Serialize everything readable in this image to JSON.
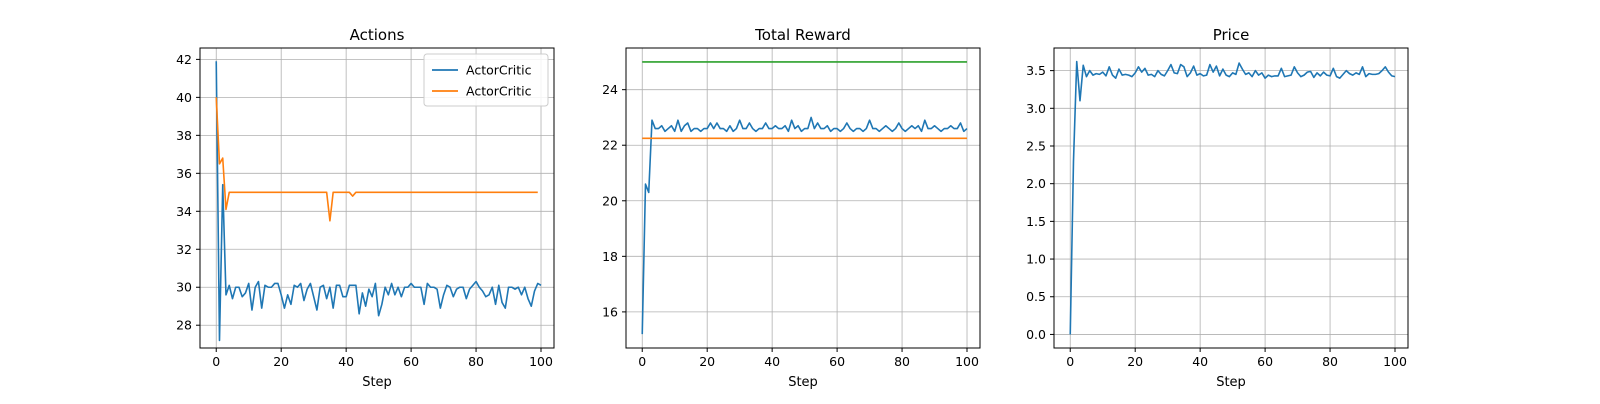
{
  "colors": {
    "c0": "#1f77b4",
    "c1": "#ff7f0e",
    "c2": "#2ca02c",
    "grid": "#b0b0b0"
  },
  "chart_data": [
    {
      "type": "line",
      "title": "Actions",
      "xlabel": "Step",
      "ylabel": "",
      "grid": true,
      "xlim": [
        -5,
        104
      ],
      "ylim": [
        26.8,
        42.6
      ],
      "xticks": [
        0,
        20,
        40,
        60,
        80,
        100
      ],
      "yticks": [
        28,
        30,
        32,
        34,
        36,
        38,
        40,
        42
      ],
      "ytick_labels": [
        "28",
        "30",
        "32",
        "34",
        "36",
        "38",
        "40",
        "42"
      ],
      "legend": {
        "position": "top-right",
        "entries": [
          "ActorCritic",
          "ActorCritic"
        ]
      },
      "series": [
        {
          "name": "ActorCritic",
          "color": "#1f77b4",
          "values": [
            41.9,
            27.2,
            35.4,
            29.6,
            30.1,
            29.4,
            30.0,
            30.0,
            29.5,
            29.7,
            30.2,
            28.8,
            30.0,
            30.3,
            28.9,
            30.1,
            30.0,
            30.0,
            30.2,
            30.2,
            29.6,
            28.9,
            29.6,
            29.1,
            30.1,
            30.0,
            30.2,
            29.3,
            29.9,
            30.2,
            29.5,
            28.8,
            30.0,
            30.1,
            29.4,
            30.0,
            28.9,
            30.1,
            30.1,
            29.5,
            29.5,
            30.1,
            30.1,
            30.1,
            28.6,
            29.7,
            29.0,
            29.9,
            29.5,
            30.2,
            28.5,
            29.1,
            30.0,
            29.6,
            30.2,
            29.6,
            30.0,
            29.5,
            30.0,
            30.0,
            30.2,
            30.0,
            30.0,
            30.0,
            29.1,
            30.2,
            30.0,
            30.0,
            29.9,
            28.9,
            29.6,
            30.1,
            30.0,
            29.5,
            29.9,
            30.0,
            30.0,
            29.4,
            29.9,
            30.1,
            30.3,
            30.0,
            29.8,
            29.5,
            29.6,
            30.0,
            29.1,
            30.1,
            29.2,
            28.9,
            30.0,
            30.0,
            29.9,
            30.0,
            29.6,
            30.0,
            29.4,
            29.0,
            29.8,
            30.2,
            30.1
          ]
        },
        {
          "name": "ActorCritic",
          "color": "#ff7f0e",
          "values": [
            40.0,
            36.5,
            36.8,
            34.1,
            35.0,
            35.0,
            35.0,
            35.0,
            35.0,
            35.0,
            35.0,
            35.0,
            35.0,
            35.0,
            35.0,
            35.0,
            35.0,
            35.0,
            35.0,
            35.0,
            35.0,
            35.0,
            35.0,
            35.0,
            35.0,
            35.0,
            35.0,
            35.0,
            35.0,
            35.0,
            35.0,
            35.0,
            35.0,
            35.0,
            35.0,
            33.5,
            35.0,
            35.0,
            35.0,
            35.0,
            35.0,
            35.0,
            34.8,
            35.0,
            35.0,
            35.0,
            35.0,
            35.0,
            35.0,
            35.0,
            35.0,
            35.0,
            35.0,
            35.0,
            35.0,
            35.0,
            35.0,
            35.0,
            35.0,
            35.0,
            35.0,
            35.0,
            35.0,
            35.0,
            35.0,
            35.0,
            35.0,
            35.0,
            35.0,
            35.0,
            35.0,
            35.0,
            35.0,
            35.0,
            35.0,
            35.0,
            35.0,
            35.0,
            35.0,
            35.0,
            35.0,
            35.0,
            35.0,
            35.0,
            35.0,
            35.0,
            35.0,
            35.0,
            35.0,
            35.0,
            35.0,
            35.0,
            35.0,
            35.0,
            35.0,
            35.0,
            35.0,
            35.0,
            35.0,
            35.0
          ]
        }
      ]
    },
    {
      "type": "line",
      "title": "Total Reward",
      "xlabel": "Step",
      "ylabel": "",
      "grid": true,
      "xlim": [
        -5,
        104
      ],
      "ylim": [
        14.7,
        25.5
      ],
      "xticks": [
        0,
        20,
        40,
        60,
        80,
        100
      ],
      "yticks": [
        16,
        18,
        20,
        22,
        24
      ],
      "ytick_labels": [
        "16",
        "18",
        "20",
        "22",
        "24"
      ],
      "series": [
        {
          "color": "#1f77b4",
          "values": [
            15.2,
            20.6,
            20.3,
            22.9,
            22.6,
            22.6,
            22.7,
            22.5,
            22.6,
            22.7,
            22.5,
            22.9,
            22.5,
            22.7,
            22.8,
            22.5,
            22.6,
            22.6,
            22.5,
            22.6,
            22.6,
            22.8,
            22.6,
            22.8,
            22.6,
            22.6,
            22.5,
            22.7,
            22.5,
            22.6,
            22.9,
            22.6,
            22.6,
            22.8,
            22.6,
            22.5,
            22.6,
            22.6,
            22.8,
            22.6,
            22.6,
            22.7,
            22.6,
            22.6,
            22.7,
            22.5,
            22.9,
            22.6,
            22.7,
            22.5,
            22.6,
            22.6,
            23.0,
            22.6,
            22.8,
            22.6,
            22.6,
            22.7,
            22.5,
            22.6,
            22.6,
            22.5,
            22.6,
            22.8,
            22.6,
            22.5,
            22.6,
            22.6,
            22.5,
            22.6,
            22.9,
            22.6,
            22.6,
            22.5,
            22.6,
            22.7,
            22.6,
            22.5,
            22.6,
            22.8,
            22.6,
            22.5,
            22.6,
            22.7,
            22.6,
            22.7,
            22.5,
            22.9,
            22.6,
            22.6,
            22.7,
            22.6,
            22.5,
            22.6,
            22.6,
            22.7,
            22.6,
            22.6,
            22.8,
            22.5,
            22.6
          ]
        },
        {
          "color": "#ff7f0e",
          "x": [
            0,
            100
          ],
          "values": [
            22.25,
            22.25
          ]
        },
        {
          "color": "#2ca02c",
          "x": [
            0,
            100
          ],
          "values": [
            25.0,
            25.0
          ]
        }
      ]
    },
    {
      "type": "line",
      "title": "Price",
      "xlabel": "Step",
      "ylabel": "",
      "grid": true,
      "xlim": [
        -5,
        104
      ],
      "ylim": [
        -0.18,
        3.8
      ],
      "xticks": [
        0,
        20,
        40,
        60,
        80,
        100
      ],
      "yticks": [
        0.0,
        0.5,
        1.0,
        1.5,
        2.0,
        2.5,
        3.0,
        3.5
      ],
      "ytick_labels": [
        "0.0",
        "0.5",
        "1.0",
        "1.5",
        "2.0",
        "2.5",
        "3.0",
        "3.5"
      ],
      "series": [
        {
          "color": "#1f77b4",
          "values": [
            0.0,
            2.3,
            3.62,
            3.1,
            3.57,
            3.42,
            3.5,
            3.44,
            3.46,
            3.45,
            3.48,
            3.43,
            3.55,
            3.44,
            3.4,
            3.52,
            3.44,
            3.45,
            3.44,
            3.42,
            3.47,
            3.55,
            3.48,
            3.53,
            3.44,
            3.45,
            3.42,
            3.5,
            3.45,
            3.43,
            3.5,
            3.58,
            3.47,
            3.46,
            3.58,
            3.55,
            3.42,
            3.47,
            3.56,
            3.44,
            3.46,
            3.43,
            3.44,
            3.58,
            3.48,
            3.56,
            3.43,
            3.52,
            3.44,
            3.42,
            3.47,
            3.45,
            3.6,
            3.52,
            3.45,
            3.47,
            3.42,
            3.5,
            3.44,
            3.47,
            3.4,
            3.44,
            3.42,
            3.43,
            3.43,
            3.53,
            3.42,
            3.43,
            3.44,
            3.55,
            3.47,
            3.42,
            3.44,
            3.48,
            3.49,
            3.41,
            3.47,
            3.43,
            3.48,
            3.44,
            3.43,
            3.53,
            3.42,
            3.4,
            3.45,
            3.5,
            3.46,
            3.44,
            3.47,
            3.45,
            3.55,
            3.42,
            3.46,
            3.45,
            3.45,
            3.46,
            3.5,
            3.55,
            3.48,
            3.43,
            3.42
          ]
        }
      ]
    }
  ]
}
